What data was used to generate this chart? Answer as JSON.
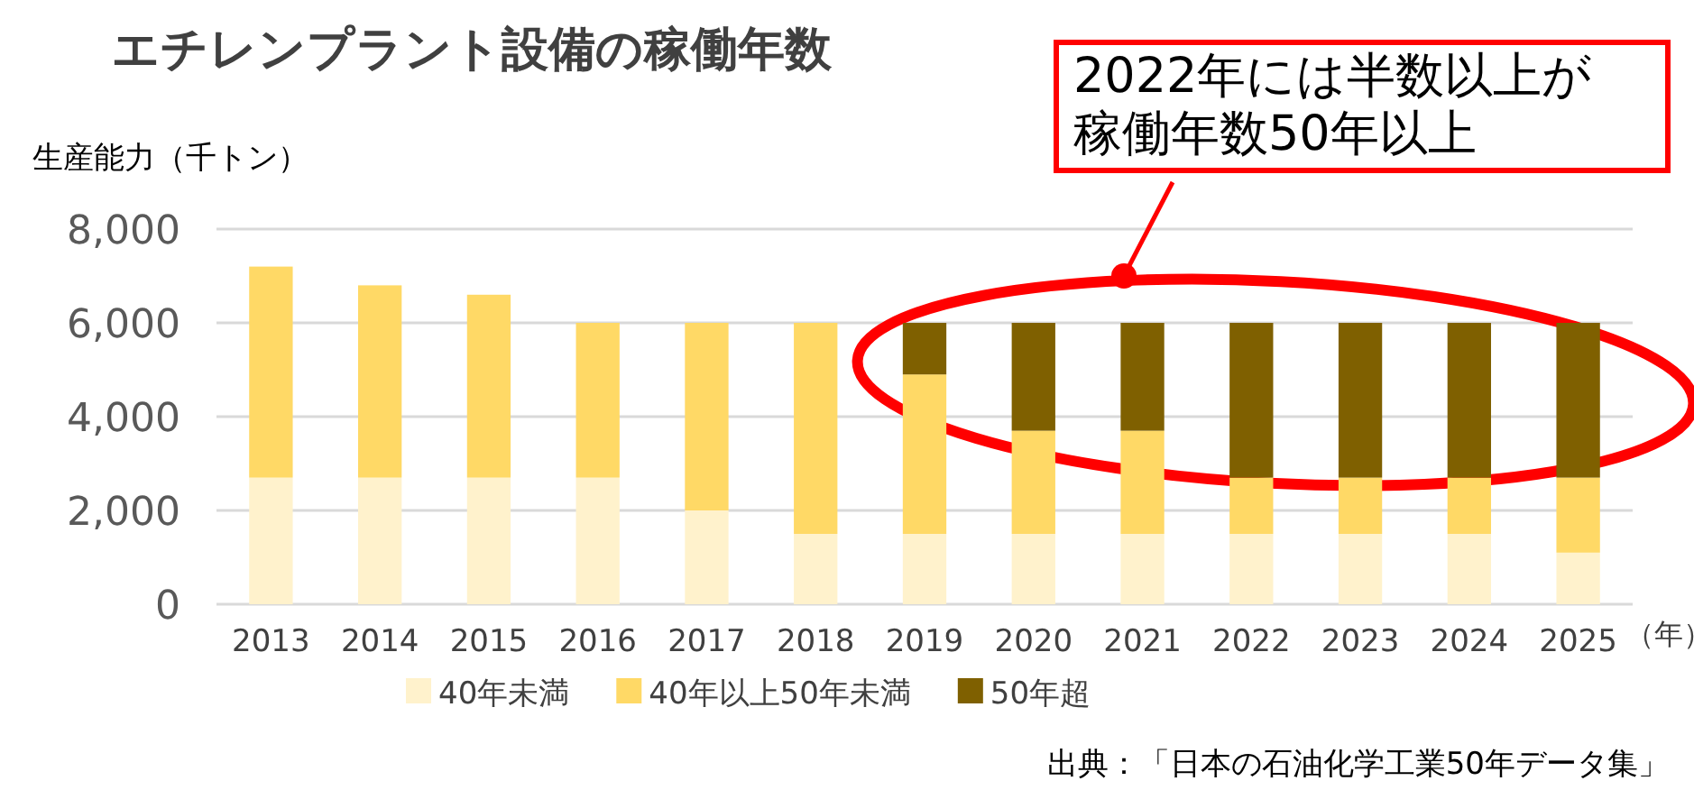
{
  "chart_data": {
    "type": "bar",
    "stacked": true,
    "title": "エチレンプラント設備の稼働年数",
    "ylabel": "生産能力（千トン）",
    "xlabel": "（年）",
    "categories": [
      "2013",
      "2014",
      "2015",
      "2016",
      "2017",
      "2018",
      "2019",
      "2020",
      "2021",
      "2022",
      "2023",
      "2024",
      "2025"
    ],
    "series": [
      {
        "name": "40年未満",
        "color": "#fff2cc",
        "values": [
          2700,
          2700,
          2700,
          2700,
          2000,
          1500,
          1500,
          1500,
          1500,
          1500,
          1500,
          1500,
          1100
        ]
      },
      {
        "name": "40年以上50年未満",
        "color": "#ffd966",
        "values": [
          4500,
          4100,
          3900,
          3300,
          4000,
          4500,
          3400,
          2200,
          2200,
          1200,
          1200,
          1200,
          1600
        ]
      },
      {
        "name": "50年超",
        "color": "#7f6000",
        "values": [
          0,
          0,
          0,
          0,
          0,
          0,
          1100,
          2300,
          2300,
          3300,
          3300,
          3300,
          3300
        ]
      }
    ],
    "ylim": [
      0,
      8000
    ],
    "yticks": [
      {
        "value": 0,
        "label": "0"
      },
      {
        "value": 2000,
        "label": "2,000"
      },
      {
        "value": 4000,
        "label": "4,000"
      },
      {
        "value": 6000,
        "label": "6,000"
      },
      {
        "value": 8000,
        "label": "8,000"
      }
    ],
    "grid": "y",
    "legend": "bottom",
    "annotations": [
      "2022年には半数以上が稼働年数50年以上",
      "出典：「日本の石油化学工業50年データ集」"
    ]
  }
}
